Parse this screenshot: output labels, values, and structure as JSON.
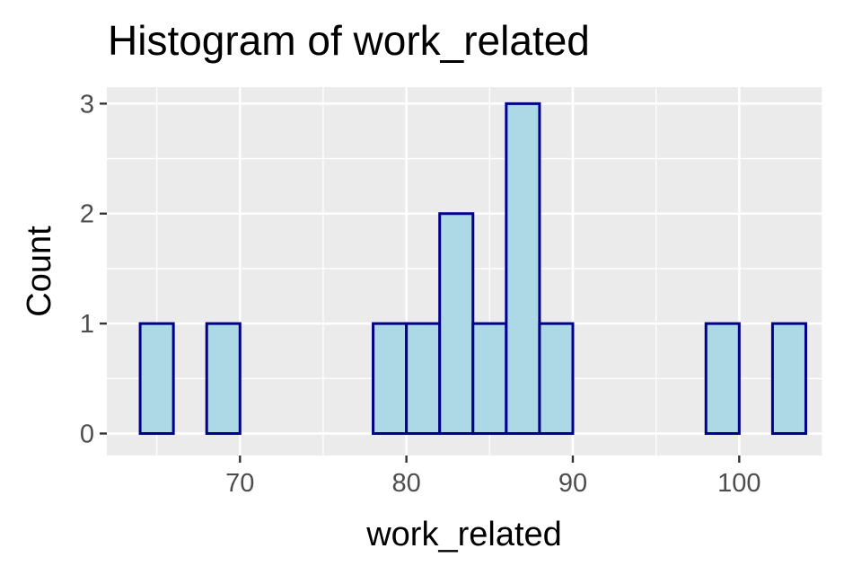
{
  "chart_data": {
    "type": "bar",
    "title": "Histogram of work_related",
    "xlabel": "work_related",
    "ylabel": "Count",
    "bins": [
      {
        "x0": 64,
        "x1": 66,
        "count": 1
      },
      {
        "x0": 66,
        "x1": 68,
        "count": 0
      },
      {
        "x0": 68,
        "x1": 70,
        "count": 1
      },
      {
        "x0": 70,
        "x1": 72,
        "count": 0
      },
      {
        "x0": 72,
        "x1": 74,
        "count": 0
      },
      {
        "x0": 74,
        "x1": 76,
        "count": 0
      },
      {
        "x0": 76,
        "x1": 78,
        "count": 0
      },
      {
        "x0": 78,
        "x1": 80,
        "count": 1
      },
      {
        "x0": 80,
        "x1": 82,
        "count": 1
      },
      {
        "x0": 82,
        "x1": 84,
        "count": 2
      },
      {
        "x0": 84,
        "x1": 86,
        "count": 1
      },
      {
        "x0": 86,
        "x1": 88,
        "count": 3
      },
      {
        "x0": 88,
        "x1": 90,
        "count": 1
      },
      {
        "x0": 90,
        "x1": 92,
        "count": 0
      },
      {
        "x0": 92,
        "x1": 94,
        "count": 0
      },
      {
        "x0": 94,
        "x1": 96,
        "count": 0
      },
      {
        "x0": 96,
        "x1": 98,
        "count": 0
      },
      {
        "x0": 98,
        "x1": 100,
        "count": 1
      },
      {
        "x0": 100,
        "x1": 102,
        "count": 0
      },
      {
        "x0": 102,
        "x1": 104,
        "count": 1
      }
    ],
    "xlim": [
      62.0,
      105.0
    ],
    "ylim": [
      -0.2,
      3.15
    ],
    "x_ticks": [
      "70",
      "80",
      "90",
      "100"
    ],
    "y_ticks": [
      "0",
      "1",
      "2",
      "3"
    ],
    "grid": true,
    "colors": {
      "fill": "#add8e6",
      "stroke": "#00008b",
      "panel": "#ebebeb",
      "grid": "#ffffff"
    }
  }
}
